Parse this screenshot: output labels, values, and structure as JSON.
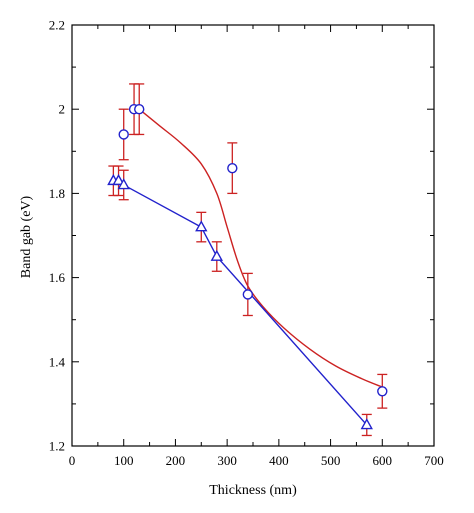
{
  "chart_data": {
    "type": "scatter",
    "title": "",
    "xlabel": "Thickness (nm)",
    "ylabel": "Band gab (eV)",
    "xlim": [
      0,
      700
    ],
    "ylim": [
      1.2,
      2.2
    ],
    "xticks": [
      0,
      100,
      200,
      300,
      400,
      500,
      600,
      700
    ],
    "yticks": [
      1.2,
      1.4,
      1.6,
      1.8,
      2.0,
      2.2
    ],
    "xtick_labels": [
      "0",
      "100",
      "200",
      "300",
      "400",
      "500",
      "600",
      "700"
    ],
    "ytick_labels": [
      "1.2",
      "1.4",
      "1.6",
      "1.8",
      "2",
      "2.2"
    ],
    "grid": false,
    "legend": "none",
    "error_bar_color": "#cc2222",
    "series": [
      {
        "marker": "circle",
        "color": "#2222cc",
        "line": "smooth-fit",
        "line_color": "#cc2222",
        "points": [
          {
            "x": 100,
            "y": 1.94,
            "err": 0.06
          },
          {
            "x": 120,
            "y": 2.0,
            "err": 0.06
          },
          {
            "x": 130,
            "y": 2.0,
            "err": 0.06
          },
          {
            "x": 310,
            "y": 1.86,
            "err": 0.06
          },
          {
            "x": 340,
            "y": 1.56,
            "err": 0.05
          },
          {
            "x": 600,
            "y": 1.33,
            "err": 0.04
          }
        ],
        "fit_curve": [
          [
            130,
            2.0
          ],
          [
            170,
            1.96
          ],
          [
            210,
            1.92
          ],
          [
            250,
            1.87
          ],
          [
            280,
            1.8
          ],
          [
            300,
            1.72
          ],
          [
            320,
            1.64
          ],
          [
            340,
            1.58
          ],
          [
            370,
            1.53
          ],
          [
            410,
            1.48
          ],
          [
            460,
            1.43
          ],
          [
            510,
            1.39
          ],
          [
            560,
            1.36
          ],
          [
            600,
            1.34
          ]
        ]
      },
      {
        "marker": "triangle",
        "color": "#2222cc",
        "line": "straight",
        "line_color": "#2222cc",
        "points": [
          {
            "x": 80,
            "y": 1.83,
            "err": 0.035
          },
          {
            "x": 90,
            "y": 1.83,
            "err": 0.035
          },
          {
            "x": 100,
            "y": 1.82,
            "err": 0.035
          },
          {
            "x": 250,
            "y": 1.72,
            "err": 0.035
          },
          {
            "x": 280,
            "y": 1.65,
            "err": 0.035
          },
          {
            "x": 570,
            "y": 1.25,
            "err": 0.025
          }
        ]
      }
    ]
  }
}
